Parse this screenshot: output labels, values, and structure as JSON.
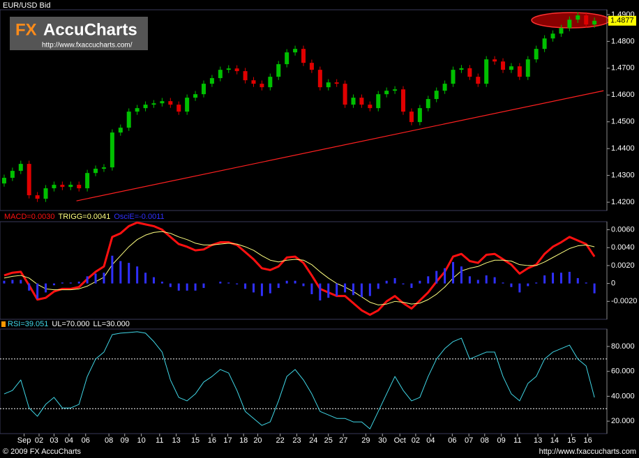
{
  "logo": {
    "brand": "FX",
    "name": "AccuCharts",
    "url": "http://www.fxaccucharts.com/"
  },
  "footer": {
    "copyright": "© 2009 FX AccuCharts",
    "url": "http://www.fxaccucharts.com"
  },
  "chart_data": [
    {
      "type": "candlestick",
      "title": "EUR/USD Bid",
      "up_color": "#00c000",
      "down_color": "#e00000",
      "xlim": [
        -0.5,
        72.5
      ],
      "ylim": [
        1.4169,
        1.4918
      ],
      "yticks": [
        {
          "value": 1.42,
          "label": "1.4200"
        },
        {
          "value": 1.43,
          "label": "1.4300"
        },
        {
          "value": 1.44,
          "label": "1.4400"
        },
        {
          "value": 1.45,
          "label": "1.4500"
        },
        {
          "value": 1.46,
          "label": "1.4600"
        },
        {
          "value": 1.47,
          "label": "1.4700"
        },
        {
          "value": 1.48,
          "label": "1.4800"
        },
        {
          "value": 1.49,
          "label": "1.4900"
        }
      ],
      "open": [
        1.427,
        1.4291,
        1.4317,
        1.4343,
        1.4226,
        1.4213,
        1.4252,
        1.4265,
        1.4257,
        1.4265,
        1.4252,
        1.4309,
        1.4325,
        1.433,
        1.446,
        1.4478,
        1.4538,
        1.4551,
        1.4564,
        1.4569,
        1.4577,
        1.4564,
        1.4538,
        1.459,
        1.4603,
        1.4642,
        1.4663,
        1.4694,
        1.4699,
        1.4689,
        1.4655,
        1.4642,
        1.4629,
        1.4668,
        1.4715,
        1.4759,
        1.4772,
        1.472,
        1.4694,
        1.4629,
        1.4647,
        1.4642,
        1.4564,
        1.459,
        1.4564,
        1.4551,
        1.4603,
        1.4616,
        1.4621,
        1.4538,
        1.4499,
        1.4551,
        1.4585,
        1.4616,
        1.4642,
        1.4694,
        1.47,
        1.4668,
        1.4642,
        1.4733,
        1.4725,
        1.4694,
        1.4707,
        1.4668,
        1.4733,
        1.4772,
        1.4811,
        1.4829,
        1.485,
        1.4881,
        1.4897,
        1.4863
      ],
      "high": [
        1.4303,
        1.4329,
        1.4355,
        1.4355,
        1.4238,
        1.4264,
        1.4277,
        1.4277,
        1.4277,
        1.4277,
        1.4321,
        1.4337,
        1.4342,
        1.4472,
        1.449,
        1.455,
        1.4563,
        1.4576,
        1.4581,
        1.4589,
        1.4589,
        1.4576,
        1.4602,
        1.4615,
        1.4654,
        1.4675,
        1.4706,
        1.4711,
        1.4711,
        1.4701,
        1.4667,
        1.4654,
        1.468,
        1.4727,
        1.4771,
        1.4784,
        1.4784,
        1.4732,
        1.4706,
        1.4659,
        1.4659,
        1.4654,
        1.4602,
        1.4602,
        1.4576,
        1.4615,
        1.4628,
        1.4633,
        1.4633,
        1.455,
        1.4563,
        1.4597,
        1.4628,
        1.4654,
        1.4706,
        1.4712,
        1.4712,
        1.468,
        1.4745,
        1.4745,
        1.4737,
        1.4719,
        1.4719,
        1.4745,
        1.4784,
        1.4823,
        1.4841,
        1.4862,
        1.4893,
        1.4909,
        1.4909,
        1.4889
      ],
      "low": [
        1.4258,
        1.4279,
        1.4305,
        1.4214,
        1.4201,
        1.4201,
        1.424,
        1.4245,
        1.4245,
        1.424,
        1.424,
        1.4297,
        1.4313,
        1.4318,
        1.4448,
        1.4466,
        1.4526,
        1.4539,
        1.4552,
        1.4557,
        1.4552,
        1.4526,
        1.4526,
        1.4578,
        1.4591,
        1.463,
        1.4651,
        1.4682,
        1.4677,
        1.4643,
        1.463,
        1.4617,
        1.4617,
        1.4656,
        1.4703,
        1.4747,
        1.4708,
        1.4682,
        1.4617,
        1.4617,
        1.463,
        1.4552,
        1.4552,
        1.4552,
        1.4539,
        1.4539,
        1.4591,
        1.4604,
        1.4526,
        1.4487,
        1.4487,
        1.4539,
        1.4573,
        1.4604,
        1.463,
        1.4682,
        1.4656,
        1.463,
        1.463,
        1.4713,
        1.4682,
        1.4682,
        1.4656,
        1.4656,
        1.4721,
        1.476,
        1.4799,
        1.4817,
        1.4838,
        1.4869,
        1.4851,
        1.4851
      ],
      "close": [
        1.4291,
        1.4317,
        1.4343,
        1.4226,
        1.4213,
        1.4252,
        1.4265,
        1.4257,
        1.4265,
        1.4252,
        1.4309,
        1.4325,
        1.433,
        1.446,
        1.4478,
        1.4538,
        1.4551,
        1.4564,
        1.4569,
        1.4577,
        1.4564,
        1.4538,
        1.459,
        1.4603,
        1.4642,
        1.4663,
        1.4694,
        1.4699,
        1.4689,
        1.4655,
        1.4642,
        1.4629,
        1.4668,
        1.4715,
        1.4759,
        1.4772,
        1.472,
        1.4694,
        1.4629,
        1.4647,
        1.4642,
        1.4564,
        1.459,
        1.4564,
        1.4551,
        1.4603,
        1.4616,
        1.4621,
        1.4538,
        1.4499,
        1.4551,
        1.4585,
        1.4616,
        1.4642,
        1.4694,
        1.47,
        1.4668,
        1.4642,
        1.4733,
        1.4725,
        1.4694,
        1.4707,
        1.4668,
        1.4733,
        1.4772,
        1.4811,
        1.4829,
        1.485,
        1.4881,
        1.4897,
        1.4863,
        1.4877
      ],
      "trendline": {
        "x": [
          8.7,
          72.1
        ],
        "values": [
          1.4205,
          1.4616
        ],
        "color": "#ff2020"
      }
    },
    {
      "type": "line",
      "xlim": [
        -0.5,
        72.5
      ],
      "ylim": [
        -0.004,
        0.0069
      ],
      "yticks": [
        {
          "value": -0.002,
          "label": "-0.0020"
        },
        0,
        {
          "value": 0.002,
          "label": "0.0020"
        },
        {
          "value": 0.004,
          "label": "0.0040"
        },
        {
          "value": 0.006,
          "label": "0.0060"
        }
      ],
      "series": [
        {
          "name": "MACD=0.0030",
          "color": "#ff1010",
          "line_width": 3,
          "values": [
            0.0009,
            0.0012,
            0.0013,
            -0.0002,
            -0.0018,
            -0.0016,
            -0.0009,
            -0.0006,
            -0.0006,
            -0.0004,
            0.0005,
            0.0013,
            0.0019,
            0.0052,
            0.0056,
            0.0064,
            0.0068,
            0.0066,
            0.0064,
            0.006,
            0.0052,
            0.0044,
            0.0041,
            0.0037,
            0.0038,
            0.0043,
            0.0046,
            0.0046,
            0.0043,
            0.0035,
            0.0027,
            0.0017,
            0.0015,
            0.0019,
            0.0029,
            0.003,
            0.0023,
            0.0009,
            -0.0006,
            -0.001,
            -0.0014,
            -0.0014,
            -0.0022,
            -0.003,
            -0.0035,
            -0.003,
            -0.002,
            -0.0014,
            -0.0022,
            -0.0028,
            -0.0019,
            -0.001,
            0.0002,
            0.0013,
            0.003,
            0.0033,
            0.0025,
            0.0023,
            0.0032,
            0.0033,
            0.0027,
            0.0021,
            0.0011,
            0.0017,
            0.0021,
            0.0033,
            0.0041,
            0.0046,
            0.0052,
            0.0048,
            0.0044,
            0.003
          ]
        },
        {
          "name": "TRIGG=0.0041",
          "color": "#ffff80",
          "line_width": 1,
          "values": [
            0.0006,
            0.0008,
            0.0009,
            0.0006,
            -0.0001,
            -0.0006,
            -0.0007,
            -0.0007,
            -0.0007,
            -0.0006,
            -0.0003,
            0.0002,
            0.0007,
            0.0021,
            0.0031,
            0.0041,
            0.0049,
            0.0054,
            0.0057,
            0.0058,
            0.0056,
            0.0052,
            0.0049,
            0.0045,
            0.0043,
            0.0043,
            0.0044,
            0.0045,
            0.0044,
            0.0041,
            0.0037,
            0.0031,
            0.0026,
            0.0024,
            0.0026,
            0.0027,
            0.0026,
            0.0021,
            0.0013,
            0.0006,
            0,
            -0.0004,
            -0.0009,
            -0.0015,
            -0.0021,
            -0.0024,
            -0.0023,
            -0.002,
            -0.0021,
            -0.0023,
            -0.0022,
            -0.0018,
            -0.0012,
            -0.0004,
            0.0006,
            0.0014,
            0.0017,
            0.0019,
            0.0023,
            0.0026,
            0.0026,
            0.0025,
            0.0021,
            0.002,
            0.002,
            0.0024,
            0.0029,
            0.0034,
            0.0039,
            0.0042,
            0.0043,
            0.0041
          ]
        },
        {
          "name": "OsciE=-0.0011",
          "color": "#3030ff",
          "type": "bar",
          "values": [
            0.0003,
            0.0004,
            0.0004,
            -0.0008,
            -0.0017,
            -0.001,
            -0.0002,
            0.0001,
            0.0001,
            0.0002,
            0.0008,
            0.0011,
            0.0012,
            0.0031,
            0.0025,
            0.0023,
            0.0019,
            0.0012,
            0.0007,
            0.0002,
            -0.0004,
            -0.0008,
            -0.0008,
            -0.0008,
            -0.0005,
            0,
            0.0002,
            0.0001,
            -0.0001,
            -0.0006,
            -0.001,
            -0.0014,
            -0.0011,
            -0.0005,
            0.0003,
            0.0003,
            -0.0003,
            -0.0012,
            -0.0019,
            -0.0016,
            -0.0014,
            -0.001,
            -0.0013,
            -0.0015,
            -0.0014,
            -0.0006,
            0.0003,
            0.0006,
            -0.0001,
            -0.0005,
            0.0003,
            0.0008,
            0.0014,
            0.0017,
            0.0024,
            0.0019,
            0.0008,
            0.0004,
            0.0009,
            0.0007,
            0.0001,
            -0.0004,
            -0.001,
            -0.0003,
            0.0001,
            0.0009,
            0.0012,
            0.0012,
            0.0013,
            0.0006,
            0.0001,
            -0.0011
          ]
        }
      ]
    },
    {
      "type": "line",
      "xlim": [
        -0.5,
        72.5
      ],
      "ylim": [
        10,
        94
      ],
      "yticks": [
        {
          "value": 20,
          "label": "20.000"
        },
        {
          "value": 40,
          "label": "40.000"
        },
        {
          "value": 60,
          "label": "60.000"
        },
        {
          "value": 80,
          "label": "80.000"
        }
      ],
      "levels": [
        {
          "value": 70,
          "label": "UL=70.000"
        },
        {
          "value": 30,
          "label": "LL=30.000"
        }
      ],
      "level_color": "#ffffff",
      "series": [
        {
          "name": "RSI=39.051",
          "color": "#40d8e8",
          "line_width": 1,
          "values": [
            41.9,
            44.7,
            53.1,
            30.6,
            23.9,
            33.5,
            39.1,
            30.6,
            30.6,
            33.5,
            55.9,
            69.9,
            75.5,
            89.5,
            90.7,
            91.2,
            91.8,
            90.7,
            83.9,
            75.5,
            53.1,
            39.1,
            36.3,
            41.9,
            51.4,
            55.9,
            61.5,
            58.7,
            44.7,
            27.8,
            22.2,
            16.6,
            19.4,
            36.3,
            55.9,
            61.5,
            53.1,
            41.9,
            27.8,
            25,
            22.2,
            22.2,
            19.4,
            19.4,
            13.8,
            27.8,
            41.9,
            55.9,
            44.7,
            36.3,
            39.1,
            55.9,
            69.9,
            78.3,
            83.9,
            86.7,
            69.9,
            72.7,
            75.5,
            75.5,
            55.9,
            41.9,
            36.3,
            50.3,
            55.9,
            69.9,
            75.5,
            78.3,
            81.1,
            69.9,
            64.3,
            39.051
          ]
        }
      ],
      "xticks": [
        {
          "value": 2.4,
          "label": "Sep"
        },
        {
          "value": 4.2,
          "label": "02"
        },
        {
          "value": 6,
          "label": "03"
        },
        {
          "value": 7.8,
          "label": "04"
        },
        {
          "value": 9.8,
          "label": "06"
        },
        {
          "value": 12.6,
          "label": "08"
        },
        {
          "value": 14.5,
          "label": "09"
        },
        {
          "value": 16.5,
          "label": "10"
        },
        {
          "value": 18.7,
          "label": "11"
        },
        {
          "value": 20.7,
          "label": "13"
        },
        {
          "value": 23,
          "label": "15"
        },
        {
          "value": 25,
          "label": "16"
        },
        {
          "value": 26.9,
          "label": "17"
        },
        {
          "value": 28.8,
          "label": "18"
        },
        {
          "value": 30.5,
          "label": "20"
        },
        {
          "value": 33.2,
          "label": "22"
        },
        {
          "value": 35.2,
          "label": "23"
        },
        {
          "value": 37.2,
          "label": "24"
        },
        {
          "value": 39,
          "label": "25"
        },
        {
          "value": 40.8,
          "label": "27"
        },
        {
          "value": 43.5,
          "label": "29"
        },
        {
          "value": 45.5,
          "label": "30"
        },
        {
          "value": 47.6,
          "label": "Oct"
        },
        {
          "value": 49.5,
          "label": "02"
        },
        {
          "value": 51.3,
          "label": "04"
        },
        {
          "value": 53.9,
          "label": "06"
        },
        {
          "value": 55.9,
          "label": "07"
        },
        {
          "value": 57.8,
          "label": "08"
        },
        {
          "value": 59.8,
          "label": "09"
        },
        {
          "value": 61.75,
          "label": "11"
        },
        {
          "value": 64.2,
          "label": "13"
        },
        {
          "value": 66.2,
          "label": "14"
        },
        {
          "value": 68.25,
          "label": "15"
        },
        {
          "value": 70.2,
          "label": "16"
        }
      ]
    }
  ]
}
